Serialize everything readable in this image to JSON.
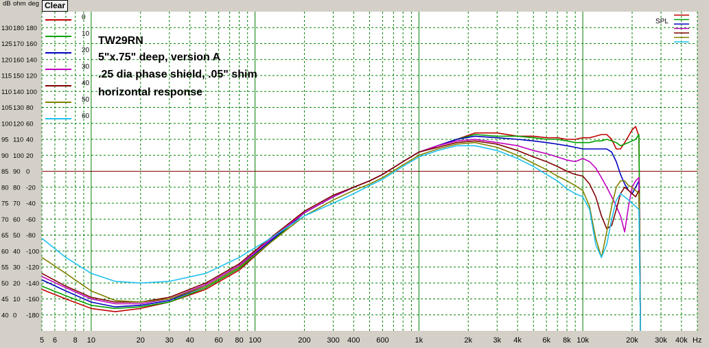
{
  "axis_header": {
    "db": "dB",
    "ohm": "ohm",
    "deg": "deg"
  },
  "clear_label": "Clear",
  "spl_label": "SPL",
  "unit_hz": "Hz",
  "annotation": [
    "TW29RN",
    "5\"x.75\" deep, version A",
    ".25 dia phase shield, .05\" shim",
    "horizontal response"
  ],
  "colors": {
    "background": "#ffffff",
    "grid": "#008000",
    "reference_line": "#800000",
    "frame": "#d4d0c8"
  },
  "y_labels": [
    {
      "db": "130",
      "ohm": "180",
      "deg": "180"
    },
    {
      "db": "125",
      "ohm": "170",
      "deg": "160"
    },
    {
      "db": "120",
      "ohm": "160",
      "deg": "140"
    },
    {
      "db": "115",
      "ohm": "150",
      "deg": "120"
    },
    {
      "db": "110",
      "ohm": "140",
      "deg": "100"
    },
    {
      "db": "105",
      "ohm": "130",
      "deg": "80"
    },
    {
      "db": "100",
      "ohm": "120",
      "deg": "60"
    },
    {
      "db": "95",
      "ohm": "110",
      "deg": "40"
    },
    {
      "db": "90",
      "ohm": "100",
      "deg": "20"
    },
    {
      "db": "85",
      "ohm": "90",
      "deg": "0"
    },
    {
      "db": "80",
      "ohm": "80",
      "deg": "-20"
    },
    {
      "db": "75",
      "ohm": "70",
      "deg": "-40"
    },
    {
      "db": "70",
      "ohm": "60",
      "deg": "-60"
    },
    {
      "db": "65",
      "ohm": "50",
      "deg": "-80"
    },
    {
      "db": "60",
      "ohm": "40",
      "deg": "-100"
    },
    {
      "db": "55",
      "ohm": "30",
      "deg": "-120"
    },
    {
      "db": "50",
      "ohm": "20",
      "deg": "-140"
    },
    {
      "db": "45",
      "ohm": "10",
      "deg": "-160"
    },
    {
      "db": "40",
      "ohm": "0",
      "deg": "-180"
    }
  ],
  "chart_data": {
    "type": "line",
    "x_scale": "log",
    "xlim": [
      5,
      50000
    ],
    "ylim": [
      35,
      135
    ],
    "ylabel": "dB",
    "reference_y": 85,
    "x_ticks": [
      {
        "v": 5,
        "t": "5"
      },
      {
        "v": 6,
        "t": "6"
      },
      {
        "v": 8,
        "t": "8"
      },
      {
        "v": 10,
        "t": "10"
      },
      {
        "v": 20,
        "t": "20"
      },
      {
        "v": 30,
        "t": "30"
      },
      {
        "v": 40,
        "t": "40"
      },
      {
        "v": 60,
        "t": "60"
      },
      {
        "v": 80,
        "t": "80"
      },
      {
        "v": 100,
        "t": "100"
      },
      {
        "v": 200,
        "t": "200"
      },
      {
        "v": 300,
        "t": "300"
      },
      {
        "v": 400,
        "t": "400"
      },
      {
        "v": 600,
        "t": "600"
      },
      {
        "v": 1000,
        "t": "1k"
      },
      {
        "v": 2000,
        "t": "2k"
      },
      {
        "v": 3000,
        "t": "3k"
      },
      {
        "v": 4000,
        "t": "4k"
      },
      {
        "v": 6000,
        "t": "6k"
      },
      {
        "v": 8000,
        "t": "8k"
      },
      {
        "v": 10000,
        "t": "10k"
      },
      {
        "v": 20000,
        "t": "20k"
      },
      {
        "v": 30000,
        "t": "30k"
      },
      {
        "v": 40000,
        "t": "40k"
      }
    ],
    "series": [
      {
        "name": "0",
        "color": "#c00000",
        "x": [
          5,
          7,
          10,
          14,
          20,
          30,
          50,
          80,
          120,
          200,
          300,
          400,
          500,
          600,
          800,
          1000,
          1300,
          1700,
          2200,
          3000,
          4000,
          5000,
          6000,
          7000,
          8000,
          9000,
          10000,
          11000,
          12000,
          13000,
          14000,
          15000,
          16000,
          17000,
          18000,
          19000,
          20000,
          21000,
          22000,
          22500
        ],
        "y": [
          48,
          45,
          42,
          41,
          42,
          44,
          48,
          54,
          62,
          72,
          77,
          80,
          82,
          84,
          88,
          91,
          93,
          95,
          97,
          97,
          96,
          96,
          95.5,
          95.5,
          95,
          95,
          95.5,
          95.5,
          96,
          96.5,
          96.5,
          95,
          92,
          92,
          94,
          96,
          98,
          99,
          96,
          35
        ]
      },
      {
        "name": "10",
        "color": "#00a000",
        "x": [
          5,
          7,
          10,
          14,
          20,
          30,
          50,
          80,
          120,
          200,
          300,
          400,
          500,
          600,
          800,
          1000,
          1300,
          1700,
          2200,
          3000,
          4000,
          5000,
          6000,
          7000,
          8000,
          9000,
          10000,
          11000,
          12000,
          13000,
          14000,
          15000,
          16000,
          17000,
          18000,
          19000,
          20000,
          21000,
          22000,
          22500
        ],
        "y": [
          49,
          46,
          43,
          42,
          42.5,
          44,
          48.5,
          54.5,
          62,
          72,
          77,
          80,
          82,
          84,
          88,
          91,
          93,
          95,
          96.5,
          96,
          96,
          95.5,
          95,
          95,
          94.5,
          94,
          94,
          94,
          94.5,
          94.5,
          95,
          94.5,
          94,
          93,
          93.5,
          94,
          94.5,
          95,
          96.5,
          35
        ]
      },
      {
        "name": "20",
        "color": "#0000c0",
        "x": [
          5,
          7,
          10,
          14,
          20,
          30,
          50,
          80,
          120,
          200,
          300,
          400,
          500,
          600,
          800,
          1000,
          1300,
          1700,
          2200,
          3000,
          4000,
          5000,
          6000,
          7000,
          8000,
          9000,
          10000,
          11000,
          12000,
          13000,
          14000,
          15000,
          16000,
          17000,
          18000,
          19000,
          20000,
          21000,
          22000,
          22500
        ],
        "y": [
          51,
          47.5,
          44,
          42.5,
          43,
          44.5,
          49,
          55,
          62.5,
          72,
          77,
          80,
          82,
          84,
          88,
          91,
          93,
          95,
          96,
          95.5,
          95,
          94.5,
          94,
          93.5,
          93,
          92.5,
          92,
          92,
          92,
          92,
          92,
          91,
          88,
          84,
          81,
          79,
          78,
          80,
          82,
          35
        ]
      },
      {
        "name": "30",
        "color": "#c000c0",
        "x": [
          5,
          7,
          10,
          14,
          20,
          30,
          50,
          80,
          120,
          200,
          300,
          400,
          500,
          600,
          800,
          1000,
          1300,
          1700,
          2200,
          3000,
          4000,
          5000,
          6000,
          7000,
          8000,
          9000,
          10000,
          11000,
          12000,
          13000,
          14000,
          15000,
          16000,
          17000,
          18000,
          19000,
          20000,
          21000,
          22000,
          22500
        ],
        "y": [
          52,
          48.5,
          45,
          43.5,
          43.5,
          45,
          49.5,
          55.5,
          63,
          72,
          77,
          80,
          82,
          84,
          88,
          91,
          93,
          94.5,
          95,
          94,
          93,
          91.5,
          90.5,
          89.5,
          88.5,
          88,
          89,
          88,
          86,
          83,
          80,
          77,
          74,
          71,
          66,
          74,
          80,
          82,
          83,
          35
        ]
      },
      {
        "name": "40",
        "color": "#800000",
        "x": [
          5,
          7,
          10,
          14,
          20,
          30,
          50,
          80,
          120,
          200,
          300,
          400,
          500,
          600,
          800,
          1000,
          1300,
          1700,
          2200,
          3000,
          4000,
          5000,
          6000,
          7000,
          8000,
          9000,
          10000,
          11000,
          12000,
          13000,
          14000,
          15000,
          16000,
          17000,
          18000,
          19000,
          20000,
          21000,
          22000,
          22500
        ],
        "y": [
          53,
          49,
          45.5,
          44,
          44,
          45.5,
          50,
          56,
          63.5,
          72.5,
          77.5,
          80,
          82,
          84,
          88,
          91,
          92.5,
          94,
          94.5,
          93.5,
          91.5,
          89.5,
          88,
          86.5,
          85,
          84,
          83.5,
          81,
          77,
          71,
          67,
          68,
          73,
          78,
          80,
          79,
          78,
          77,
          79,
          35
        ]
      },
      {
        "name": "50",
        "color": "#808000",
        "x": [
          5,
          7,
          10,
          14,
          20,
          30,
          50,
          80,
          120,
          200,
          300,
          400,
          500,
          600,
          800,
          1000,
          1300,
          1700,
          2200,
          3000,
          4000,
          5000,
          6000,
          7000,
          8000,
          9000,
          10000,
          11000,
          12000,
          13000,
          14000,
          15000,
          16000,
          17000,
          18000,
          19000,
          20000,
          21000,
          22000,
          22500
        ],
        "y": [
          58,
          53,
          47.5,
          44.5,
          44,
          45,
          49,
          55,
          62,
          71,
          76,
          79,
          81,
          83,
          87,
          90,
          92,
          93.5,
          94,
          92.5,
          90,
          87.5,
          85.5,
          83.5,
          82,
          80.5,
          79,
          74,
          64,
          58,
          66,
          74,
          80,
          82,
          82,
          80.5,
          80,
          79,
          78,
          35
        ]
      },
      {
        "name": "60",
        "color": "#20c0f0",
        "x": [
          5,
          7,
          10,
          14,
          20,
          30,
          50,
          80,
          120,
          200,
          300,
          400,
          500,
          600,
          800,
          1000,
          1300,
          1700,
          2200,
          3000,
          4000,
          5000,
          6000,
          7000,
          8000,
          9000,
          10000,
          11000,
          12000,
          13000,
          14000,
          15000,
          16000,
          17000,
          18000,
          19000,
          20000,
          21000,
          22000,
          22500
        ],
        "y": [
          64,
          58,
          53,
          50.5,
          50,
          50.5,
          53,
          58,
          63.5,
          71,
          75,
          78,
          80.5,
          82.5,
          86.5,
          89.5,
          91.5,
          93,
          93,
          91.5,
          89,
          86.5,
          84,
          82,
          79.5,
          78,
          77,
          73,
          62,
          58,
          62,
          70,
          76,
          78,
          77,
          76,
          75,
          74,
          73,
          35
        ]
      }
    ]
  }
}
